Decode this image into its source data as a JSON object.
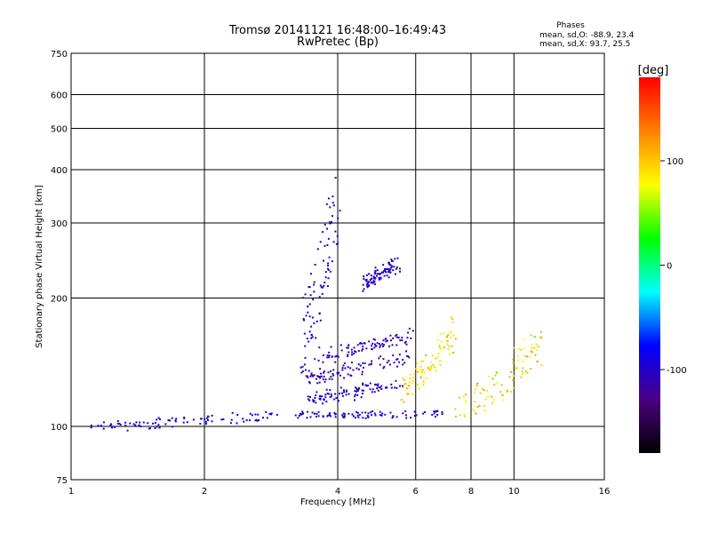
{
  "chart_data": {
    "type": "scatter",
    "title": "Tromsø 20141121 16:48:00–16:49:43",
    "subtitle": "RwPretec (Bp)",
    "xlabel": "Frequency [MHz]",
    "ylabel": "Stationary phase Virtual Height [km]",
    "x_scale": "log",
    "y_scale": "log",
    "xlim": [
      1,
      16
    ],
    "ylim": [
      75,
      750
    ],
    "x_ticks": [
      1,
      2,
      4,
      6,
      8,
      10,
      16
    ],
    "y_ticks": [
      75,
      100,
      200,
      300,
      400,
      500,
      600,
      750
    ],
    "grid": true,
    "stats": {
      "heading": "Phases",
      "line_o": "mean, sd,O: -88.9, 23.4",
      "line_x": "mean, sd,X:  93.7, 25.5"
    },
    "colorbar": {
      "label": "[deg]",
      "range": [
        -180,
        180
      ],
      "ticks": [
        100,
        0,
        -100
      ],
      "colormap": [
        "#000000",
        "#4b0082",
        "#0000ff",
        "#00ffff",
        "#00ff00",
        "#ffff00",
        "#ff8000",
        "#ff0000"
      ]
    },
    "series": [
      {
        "traces": [
          {
            "f": [
              1.1,
              2.9
            ],
            "h": [
              98,
              108
            ],
            "phase": [
              -100,
              -80
            ]
          },
          {
            "f": [
              3.2,
              6.9
            ],
            "h": [
              106,
              107
            ],
            "phase": [
              -105,
              -95
            ]
          },
          {
            "f": [
              3.4,
              5.6
            ],
            "h": [
              112,
              130
            ],
            "phase": [
              -110,
              -90
            ]
          },
          {
            "f": [
              3.4,
              5.8
            ],
            "h": [
              125,
              150
            ],
            "phase": [
              -120,
              -100
            ]
          },
          {
            "f": [
              3.6,
              5.9
            ],
            "h": [
              140,
              170
            ],
            "phase": [
              -120,
              -90
            ]
          },
          {
            "f": [
              3.3,
              4.0
            ],
            "h": [
              120,
              400
            ],
            "phase": [
              -110,
              -90
            ]
          },
          {
            "f": [
              4.6,
              5.5
            ],
            "h": [
              210,
              250
            ],
            "phase": [
              -110,
              -90
            ]
          },
          {
            "f": [
              5.6,
              7.4
            ],
            "h": [
              110,
              180
            ],
            "phase": [
              60,
              120
            ]
          },
          {
            "f": [
              7.4,
              11.5
            ],
            "h": [
              95,
              170
            ],
            "phase": [
              40,
              130
            ]
          }
        ]
      }
    ]
  }
}
